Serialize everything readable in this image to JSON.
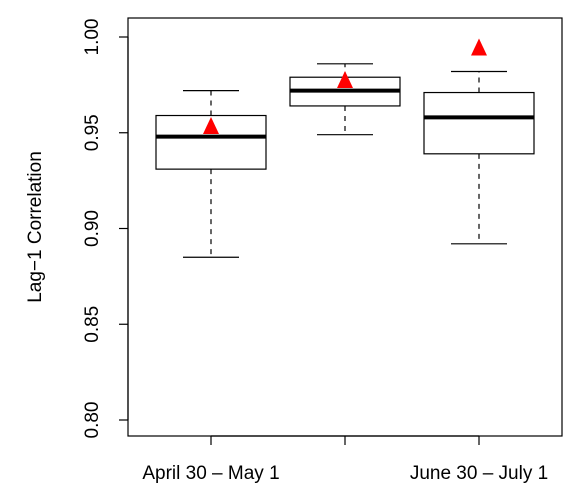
{
  "chart_data": {
    "type": "box",
    "title": "",
    "xlabel": "",
    "ylabel": "Lag−1 Correlation",
    "ylim": [
      0.8,
      1.0
    ],
    "yticks": [
      "0.80",
      "0.85",
      "0.90",
      "0.95",
      "1.00"
    ],
    "ytick_values": [
      0.8,
      0.85,
      0.9,
      0.95,
      1.0
    ],
    "categories": [
      "April 30 – May 1",
      "",
      "June 30 – July 1"
    ],
    "boxes": [
      {
        "whisker_low": 0.885,
        "q1": 0.931,
        "median": 0.948,
        "q3": 0.959,
        "whisker_high": 0.972,
        "marker": 0.953
      },
      {
        "whisker_low": 0.949,
        "q1": 0.964,
        "median": 0.972,
        "q3": 0.979,
        "whisker_high": 0.986,
        "marker": 0.977
      },
      {
        "whisker_low": 0.892,
        "q1": 0.939,
        "median": 0.958,
        "q3": 0.971,
        "whisker_high": 0.982,
        "marker": 0.994
      }
    ],
    "marker_shape": "triangle",
    "marker_color": "#ff0000",
    "box_color": "#000000",
    "grid": false
  }
}
